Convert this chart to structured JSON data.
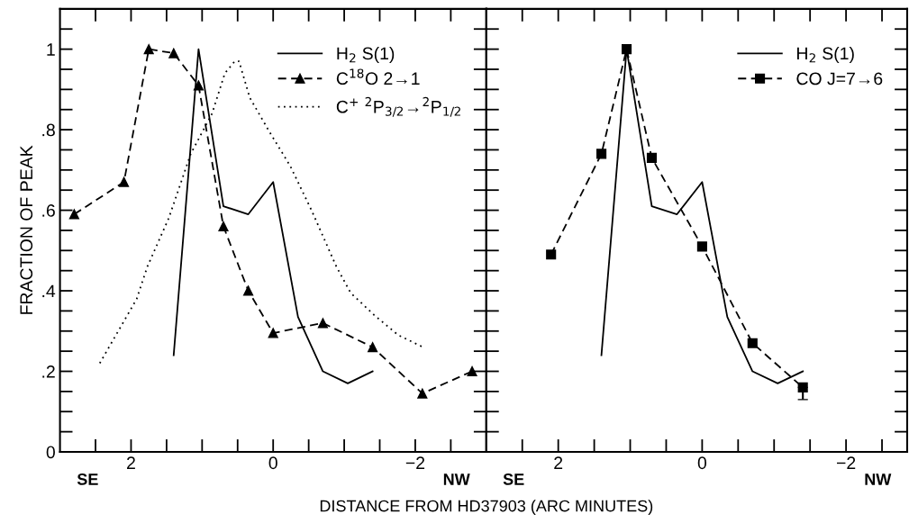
{
  "chart_data": [
    {
      "type": "line",
      "xlabel": "DISTANCE FROM HD37903 (ARC MINUTES)",
      "ylabel": "FRACTION OF PEAK",
      "annotations": [
        "SE",
        "NW"
      ],
      "legend": "top right",
      "grid": false,
      "xlim": [
        3,
        -3
      ],
      "ylim": [
        0,
        1.1
      ],
      "xticks": [
        {
          "value": 2.5,
          "label": null
        },
        2,
        {
          "value": 1.5,
          "label": null
        },
        {
          "value": 1,
          "label": null
        },
        {
          "value": 0.5,
          "label": null
        },
        0,
        {
          "value": -0.5,
          "label": null
        },
        {
          "value": -1,
          "label": null
        },
        {
          "value": -1.5,
          "label": null
        },
        {
          "value": -2,
          "label": "−2"
        },
        {
          "value": -2.5,
          "label": null
        }
      ],
      "yticks": [
        0,
        {
          "value": 0.05,
          "label": null
        },
        {
          "value": 0.1,
          "label": null
        },
        {
          "value": 0.15,
          "label": null
        },
        {
          "value": 0.2,
          "label": ".2"
        },
        {
          "value": 0.25,
          "label": null
        },
        {
          "value": 0.3,
          "label": null
        },
        {
          "value": 0.35,
          "label": null
        },
        {
          "value": 0.4,
          "label": ".4"
        },
        {
          "value": 0.45,
          "label": null
        },
        {
          "value": 0.5,
          "label": null
        },
        {
          "value": 0.55,
          "label": null
        },
        {
          "value": 0.6,
          "label": ".6"
        },
        {
          "value": 0.65,
          "label": null
        },
        {
          "value": 0.7,
          "label": null
        },
        {
          "value": 0.75,
          "label": null
        },
        {
          "value": 0.8,
          "label": ".8"
        },
        {
          "value": 0.85,
          "label": null
        },
        {
          "value": 0.9,
          "label": null
        },
        {
          "value": 0.95,
          "label": null
        },
        1,
        {
          "value": 1.05,
          "label": null
        }
      ],
      "series": [
        {
          "name": "H$_{2}$ S(1)",
          "color": "#000000",
          "line_style": "solid",
          "marker": "none",
          "x": [
            1.4,
            1.05,
            0.7,
            0.35,
            0,
            -0.35,
            -0.7,
            -1.05,
            -1.4
          ],
          "values": [
            0.24,
            1.0,
            0.61,
            0.59,
            0.67,
            0.335,
            0.2,
            0.17,
            0.2
          ]
        },
        {
          "name": "C$^{18}$O 2→1",
          "color": "#000000",
          "line_style": "dashed",
          "marker": "triangle",
          "x": [
            2.8,
            2.1,
            1.75,
            1.4,
            1.05,
            0.7,
            0.35,
            0,
            -0.7,
            -1.4,
            -2.1,
            -2.8
          ],
          "values": [
            0.59,
            0.67,
            1.0,
            0.99,
            0.91,
            0.56,
            0.4,
            0.295,
            0.32,
            0.26,
            0.145,
            0.2
          ]
        },
        {
          "name": "C$^{+}$ $^{2}$P$_{3/2}$→$^{2}$P$_{1/2}$",
          "color": "#000000",
          "line_style": "dotted",
          "marker": "none",
          "x": [
            2.44,
            1.92,
            1.77,
            1.47,
            1.16,
            0.86,
            0.68,
            0.54,
            0.48,
            0.33,
            0.07,
            -0.24,
            -0.54,
            -0.89,
            -1.09,
            -1.42,
            -1.76,
            -2.11
          ],
          "values": [
            0.22,
            0.38,
            0.46,
            0.58,
            0.74,
            0.84,
            0.94,
            0.97,
            0.97,
            0.88,
            0.8,
            0.71,
            0.6,
            0.46,
            0.395,
            0.34,
            0.29,
            0.26
          ]
        }
      ]
    },
    {
      "type": "line",
      "annotations": [
        "SE",
        "NW"
      ],
      "legend": "top right",
      "grid": false,
      "tick_labels": "x",
      "xlim": [
        3,
        -2.85
      ],
      "ylim": [
        0,
        1.1
      ],
      "xticks": [
        {
          "value": 2.5,
          "label": null
        },
        2,
        {
          "value": 1.5,
          "label": null
        },
        {
          "value": 1,
          "label": null
        },
        {
          "value": 0.5,
          "label": null
        },
        0,
        {
          "value": -0.5,
          "label": null
        },
        {
          "value": -1,
          "label": null
        },
        {
          "value": -1.5,
          "label": null
        },
        {
          "value": -2,
          "label": "−2"
        },
        {
          "value": -2.5,
          "label": null
        }
      ],
      "yticks": [
        {
          "value": 0,
          "label": null
        },
        {
          "value": 0.05,
          "label": null
        },
        {
          "value": 0.1,
          "label": null
        },
        {
          "value": 0.15,
          "label": null
        },
        {
          "value": 0.2,
          "label": null
        },
        {
          "value": 0.25,
          "label": null
        },
        {
          "value": 0.3,
          "label": null
        },
        {
          "value": 0.35,
          "label": null
        },
        {
          "value": 0.4,
          "label": null
        },
        {
          "value": 0.45,
          "label": null
        },
        {
          "value": 0.5,
          "label": null
        },
        {
          "value": 0.55,
          "label": null
        },
        {
          "value": 0.6,
          "label": null
        },
        {
          "value": 0.65,
          "label": null
        },
        {
          "value": 0.7,
          "label": null
        },
        {
          "value": 0.75,
          "label": null
        },
        {
          "value": 0.8,
          "label": null
        },
        {
          "value": 0.85,
          "label": null
        },
        {
          "value": 0.9,
          "label": null
        },
        {
          "value": 0.95,
          "label": null
        },
        {
          "value": 1,
          "label": null
        },
        {
          "value": 1.05,
          "label": null
        }
      ],
      "series": [
        {
          "name": "H$_{2}$ S(1)",
          "color": "#000000",
          "line_style": "solid",
          "marker": "none",
          "x": [
            1.4,
            1.05,
            0.7,
            0.35,
            0,
            -0.35,
            -0.7,
            -1.05,
            -1.4
          ],
          "values": [
            0.24,
            1.0,
            0.61,
            0.59,
            0.67,
            0.335,
            0.2,
            0.17,
            0.2
          ]
        },
        {
          "name": "CO J=7→6",
          "color": "#000000",
          "line_style": "dashed",
          "marker": "square",
          "x": [
            2.1,
            1.4,
            1.05,
            0.7,
            0,
            -0.7,
            -1.4
          ],
          "values": [
            0.49,
            0.74,
            1.0,
            0.73,
            0.51,
            0.27,
            0.16
          ],
          "errors": [
            null,
            null,
            null,
            null,
            null,
            null,
            [
              0.13,
              0.16
            ]
          ]
        }
      ]
    }
  ]
}
